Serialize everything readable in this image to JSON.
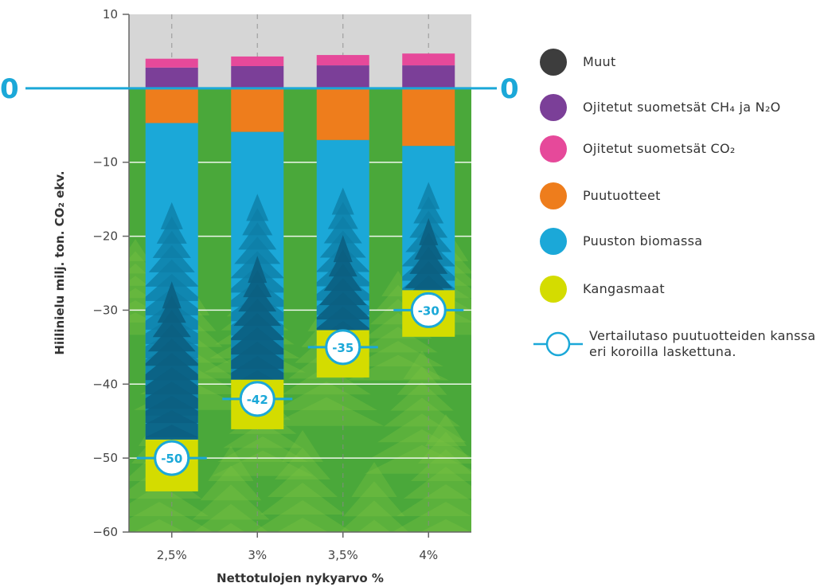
{
  "chart_data": {
    "type": "bar",
    "stacked": true,
    "xlabel": "Nettotulojen nykyarvo %",
    "ylabel": "Hiilinielu milj. ton. CO₂ ekv.",
    "ylim": [
      -60,
      10
    ],
    "yticks": [
      10,
      -10,
      -20,
      -30,
      -40,
      -50,
      -60
    ],
    "grid": true,
    "zero_label": "0",
    "categories": [
      "2,5%",
      "3%",
      "3,5%",
      "4%"
    ],
    "series": [
      {
        "name": "Muut",
        "color": "#3d3d3d",
        "values": [
          0.1,
          0.1,
          0.1,
          0.1
        ]
      },
      {
        "name": "Ojitetut suometsät CH₄ ja N₂O",
        "color": "#7b3f98",
        "values": [
          2.7,
          2.9,
          3.0,
          3.0
        ]
      },
      {
        "name": "Ojitetut suometsät CO₂",
        "color": "#e6499a",
        "values": [
          1.2,
          1.3,
          1.4,
          1.6
        ]
      },
      {
        "name": "Puutuotteet",
        "color": "#ee7d1c",
        "values": [
          -4.7,
          -5.9,
          -7.0,
          -7.8
        ]
      },
      {
        "name": "Puuston biomassa",
        "color": "#1ba8d8",
        "values": [
          -42.8,
          -33.5,
          -25.7,
          -19.5
        ]
      },
      {
        "name": "Kangasmaat",
        "color": "#d4dc00",
        "values": [
          -7.0,
          -6.7,
          -6.4,
          -6.3
        ]
      }
    ],
    "reference": {
      "name": "Vertailutaso puutuotteiden kanssa eri koroilla laskettuna.",
      "values": [
        -50,
        -42,
        -35,
        -30
      ],
      "labels": [
        "-50",
        "-42",
        "-35",
        "-30"
      ]
    },
    "colors": {
      "accent": "#1ba8d8",
      "positive_area": "#d6d6d6",
      "negative_area": "#4aa83a"
    },
    "legend_position": "right"
  }
}
